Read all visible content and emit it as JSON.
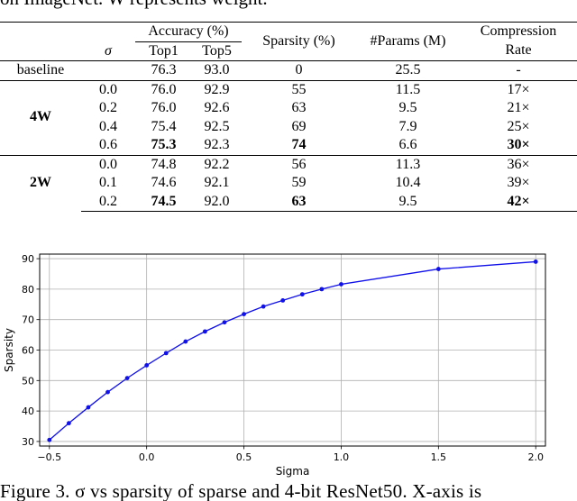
{
  "top_caption": "on ImageNet. W represents weight.",
  "table": {
    "headers": {
      "sigma": "σ",
      "accuracy": "Accuracy (%)",
      "top1": "Top1",
      "top5": "Top5",
      "sparsity": "Sparsity (%)",
      "params": "#Params (M)",
      "compression_line1": "Compression",
      "compression_line2": "Rate"
    },
    "baseline": {
      "label": "baseline",
      "top1": "76.3",
      "top5": "93.0",
      "sparsity": "0",
      "params": "25.5",
      "rate": "-"
    },
    "group_4w": {
      "label": "4W",
      "rows": [
        {
          "sigma": "0.0",
          "top1": "76.0",
          "top5": "92.9",
          "sparsity": "55",
          "params": "11.5",
          "rate": "17×"
        },
        {
          "sigma": "0.2",
          "top1": "76.0",
          "top5": "92.6",
          "sparsity": "63",
          "params": "9.5",
          "rate": "21×"
        },
        {
          "sigma": "0.4",
          "top1": "75.4",
          "top5": "92.5",
          "sparsity": "69",
          "params": "7.9",
          "rate": "25×"
        },
        {
          "sigma": "0.6",
          "top1": "75.3",
          "top5": "92.3",
          "sparsity": "74",
          "params": "6.6",
          "rate": "30×"
        }
      ]
    },
    "group_2w": {
      "label": "2W",
      "rows": [
        {
          "sigma": "0.0",
          "top1": "74.8",
          "top5": "92.2",
          "sparsity": "56",
          "params": "11.3",
          "rate": "36×"
        },
        {
          "sigma": "0.1",
          "top1": "74.6",
          "top5": "92.1",
          "sparsity": "59",
          "params": "10.4",
          "rate": "39×"
        },
        {
          "sigma": "0.2",
          "top1": "74.5",
          "top5": "92.0",
          "sparsity": "63",
          "params": "9.5",
          "rate": "42×"
        }
      ]
    }
  },
  "chart_data": {
    "type": "line",
    "xlabel": "Sigma",
    "ylabel": "Sparsity",
    "xlim": [
      -0.55,
      2.05
    ],
    "ylim": [
      28.5,
      91.5
    ],
    "xticks": [
      -0.5,
      0.0,
      0.5,
      1.0,
      1.5,
      2.0
    ],
    "xtick_labels": [
      "−0.5",
      "0.0",
      "0.5",
      "1.0",
      "1.5",
      "2.0"
    ],
    "yticks": [
      30,
      40,
      50,
      60,
      70,
      80,
      90
    ],
    "grid": true,
    "color": "#1010e8",
    "x": [
      -0.5,
      -0.4,
      -0.3,
      -0.2,
      -0.1,
      0.0,
      0.1,
      0.2,
      0.3,
      0.4,
      0.5,
      0.6,
      0.7,
      0.8,
      0.9,
      1.0,
      1.5,
      2.0
    ],
    "y": [
      30.5,
      36.0,
      41.2,
      46.2,
      50.8,
      55.0,
      59.0,
      62.8,
      66.1,
      69.1,
      71.8,
      74.3,
      76.3,
      78.3,
      80.0,
      81.6,
      86.6,
      89.0
    ]
  },
  "figure_caption": "Figure 3. σ vs sparsity of sparse and 4-bit ResNet50. X-axis is"
}
